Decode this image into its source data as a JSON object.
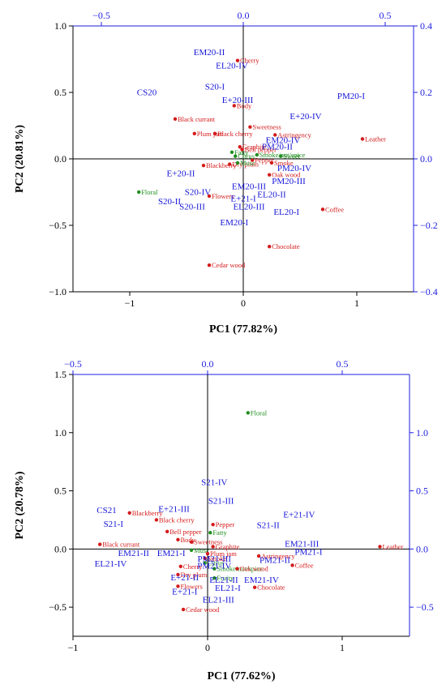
{
  "chart_data": [
    {
      "type": "scatter",
      "title": "",
      "xlabel": "PC1 (77.82%)",
      "ylabel": "PC2 (20.81%)",
      "xlim": [
        -1.5,
        1.5
      ],
      "ylim": [
        -1.0,
        1.0
      ],
      "xticks": [
        "−1",
        "0",
        "1"
      ],
      "yticks": [
        "1.0",
        "0.5",
        "0.0",
        "−0.5",
        "−1.0"
      ],
      "secondary_x_ticks": [
        "−0.5",
        "0.0",
        "0.5"
      ],
      "secondary_y_ticks": [
        "0.4",
        "0.2",
        "0.0",
        "−0.2",
        "−0.4"
      ],
      "samples": [
        {
          "label": "EM20-II",
          "x": -0.3,
          "y": 0.78
        },
        {
          "label": "EL20-IV",
          "x": -0.1,
          "y": 0.68
        },
        {
          "label": "CS20",
          "x": -0.85,
          "y": 0.48
        },
        {
          "label": "S20-I",
          "x": -0.25,
          "y": 0.52
        },
        {
          "label": "E+20-III",
          "x": -0.05,
          "y": 0.42
        },
        {
          "label": "PM20-I",
          "x": 0.95,
          "y": 0.45
        },
        {
          "label": "E+20-IV",
          "x": 0.55,
          "y": 0.3
        },
        {
          "label": "EM20-IV",
          "x": 0.35,
          "y": 0.12
        },
        {
          "label": "PM20-II",
          "x": 0.3,
          "y": 0.07
        },
        {
          "label": "PM20-IV",
          "x": 0.45,
          "y": -0.09
        },
        {
          "label": "PM20-III",
          "x": 0.4,
          "y": -0.19
        },
        {
          "label": "E+20-II",
          "x": -0.55,
          "y": -0.13
        },
        {
          "label": "S20-IV",
          "x": -0.4,
          "y": -0.27
        },
        {
          "label": "S20-II",
          "x": -0.65,
          "y": -0.34
        },
        {
          "label": "S20-III",
          "x": -0.45,
          "y": -0.38
        },
        {
          "label": "EM20-III",
          "x": 0.05,
          "y": -0.23
        },
        {
          "label": "E+21-I",
          "x": 0.0,
          "y": -0.32
        },
        {
          "label": "EL20-II",
          "x": 0.25,
          "y": -0.29
        },
        {
          "label": "EL20-III",
          "x": 0.05,
          "y": -0.38
        },
        {
          "label": "EL20-I",
          "x": 0.38,
          "y": -0.42
        },
        {
          "label": "EM20-I",
          "x": -0.08,
          "y": -0.5
        }
      ],
      "attributes": [
        {
          "label": "Cherry",
          "x": -0.05,
          "y": 0.74,
          "group": "red"
        },
        {
          "label": "Body",
          "x": -0.08,
          "y": 0.4,
          "group": "red"
        },
        {
          "label": "Black currant",
          "x": -0.6,
          "y": 0.3,
          "group": "red"
        },
        {
          "label": "Plum jam",
          "x": -0.43,
          "y": 0.19,
          "group": "red"
        },
        {
          "label": "Black cherry",
          "x": -0.25,
          "y": 0.19,
          "group": "red"
        },
        {
          "label": "Sweetness",
          "x": 0.06,
          "y": 0.24,
          "group": "red"
        },
        {
          "label": "Astringency",
          "x": 0.28,
          "y": 0.18,
          "group": "red"
        },
        {
          "label": "Leather",
          "x": 1.05,
          "y": 0.15,
          "group": "red"
        },
        {
          "label": "Graphite",
          "x": -0.03,
          "y": 0.09,
          "group": "red"
        },
        {
          "label": "Bell pepper",
          "x": -0.01,
          "y": 0.07,
          "group": "red"
        },
        {
          "label": "Smoke",
          "x": 0.25,
          "y": -0.03,
          "group": "red"
        },
        {
          "label": "Pepper",
          "x": 0.08,
          "y": -0.01,
          "group": "red"
        },
        {
          "label": "Blackberry",
          "x": -0.35,
          "y": -0.05,
          "group": "red"
        },
        {
          "label": "Dry plum",
          "x": -0.12,
          "y": -0.04,
          "group": "red"
        },
        {
          "label": "Oak wood",
          "x": 0.23,
          "y": -0.12,
          "group": "red"
        },
        {
          "label": "Flowers",
          "x": -0.3,
          "y": -0.28,
          "group": "red"
        },
        {
          "label": "Coffee",
          "x": 0.7,
          "y": -0.38,
          "group": "red"
        },
        {
          "label": "Chocolate",
          "x": 0.23,
          "y": -0.66,
          "group": "red"
        },
        {
          "label": "Cedar wood",
          "x": -0.3,
          "y": -0.8,
          "group": "red"
        },
        {
          "label": "Fatty",
          "x": -0.1,
          "y": 0.05,
          "group": "green"
        },
        {
          "label": "Citrus",
          "x": -0.07,
          "y": 0.02,
          "group": "green"
        },
        {
          "label": "Smoke/nut/spice",
          "x": 0.12,
          "y": 0.03,
          "group": "green"
        },
        {
          "label": "Sweet",
          "x": 0.33,
          "y": 0.02,
          "group": "green"
        },
        {
          "label": "Musc",
          "x": -0.05,
          "y": -0.03,
          "group": "green"
        },
        {
          "label": "Floral",
          "x": -0.92,
          "y": -0.25,
          "group": "green"
        }
      ]
    },
    {
      "type": "scatter",
      "title": "",
      "xlabel": "PC1 (77.62%)",
      "ylabel": "PC2 (20.78%)",
      "xlim": [
        -1.0,
        1.5
      ],
      "ylim": [
        -0.75,
        1.5
      ],
      "xticks": [
        "−1",
        "0",
        "1"
      ],
      "yticks": [
        "1.5",
        "1.0",
        "0.5",
        "0.0",
        "−0.5"
      ],
      "secondary_x_ticks": [
        "−0.5",
        "0.0",
        "0.5"
      ],
      "secondary_y_ticks": [
        "1.0",
        "0.5",
        "0.0",
        "−0.5"
      ],
      "samples": [
        {
          "label": "S21-IV",
          "x": 0.05,
          "y": 0.55
        },
        {
          "label": "S21-III",
          "x": 0.1,
          "y": 0.39
        },
        {
          "label": "E+21-IV",
          "x": 0.68,
          "y": 0.27
        },
        {
          "label": "CS21",
          "x": -0.75,
          "y": 0.31
        },
        {
          "label": "E+21-III",
          "x": -0.25,
          "y": 0.32
        },
        {
          "label": "S21-I",
          "x": -0.7,
          "y": 0.19
        },
        {
          "label": "S21-II",
          "x": 0.45,
          "y": 0.18
        },
        {
          "label": "EM21-III",
          "x": 0.7,
          "y": 0.02
        },
        {
          "label": "PM21-I",
          "x": 0.75,
          "y": -0.05
        },
        {
          "label": "EM21-II",
          "x": -0.55,
          "y": -0.06
        },
        {
          "label": "EM21-I",
          "x": -0.27,
          "y": -0.06
        },
        {
          "label": "EL21-IV",
          "x": -0.72,
          "y": -0.15
        },
        {
          "label": "PM21-III",
          "x": 0.05,
          "y": -0.11
        },
        {
          "label": "PM21-II",
          "x": 0.5,
          "y": -0.12
        },
        {
          "label": "PM21-IV",
          "x": 0.05,
          "y": -0.17
        },
        {
          "label": "E+21-II",
          "x": -0.17,
          "y": -0.27
        },
        {
          "label": "EL21-II",
          "x": 0.12,
          "y": -0.29
        },
        {
          "label": "EM21-IV",
          "x": 0.4,
          "y": -0.29
        },
        {
          "label": "EL21-I",
          "x": 0.15,
          "y": -0.36
        },
        {
          "label": "E+21-I",
          "x": -0.17,
          "y": -0.39
        },
        {
          "label": "EL21-III",
          "x": 0.08,
          "y": -0.46
        }
      ],
      "attributes": [
        {
          "label": "Floral",
          "x": 0.3,
          "y": 1.17,
          "group": "green"
        },
        {
          "label": "Blackberry",
          "x": -0.58,
          "y": 0.31,
          "group": "red"
        },
        {
          "label": "Black cherry",
          "x": -0.38,
          "y": 0.25,
          "group": "red"
        },
        {
          "label": "Pepper",
          "x": 0.04,
          "y": 0.21,
          "group": "red"
        },
        {
          "label": "Bell pepper",
          "x": -0.3,
          "y": 0.15,
          "group": "red"
        },
        {
          "label": "Fatty",
          "x": 0.02,
          "y": 0.14,
          "group": "green"
        },
        {
          "label": "Body",
          "x": -0.22,
          "y": 0.08,
          "group": "red"
        },
        {
          "label": "Sweetness",
          "x": -0.12,
          "y": 0.06,
          "group": "red"
        },
        {
          "label": "Black currant",
          "x": -0.8,
          "y": 0.04,
          "group": "red"
        },
        {
          "label": "Graphite",
          "x": 0.04,
          "y": 0.02,
          "group": "red"
        },
        {
          "label": "Leather",
          "x": 1.28,
          "y": 0.02,
          "group": "red"
        },
        {
          "label": "Musc",
          "x": -0.12,
          "y": -0.01,
          "group": "green"
        },
        {
          "label": "Plum jam",
          "x": 0.0,
          "y": -0.04,
          "group": "red"
        },
        {
          "label": "Smoke",
          "x": -0.02,
          "y": -0.08,
          "group": "red"
        },
        {
          "label": "Astringency",
          "x": 0.38,
          "y": -0.06,
          "group": "red"
        },
        {
          "label": "Citrus",
          "x": -0.02,
          "y": -0.12,
          "group": "green"
        },
        {
          "label": "Coffee",
          "x": 0.63,
          "y": -0.14,
          "group": "red"
        },
        {
          "label": "Cherry",
          "x": -0.2,
          "y": -0.15,
          "group": "red"
        },
        {
          "label": "Smoke/nut/spice",
          "x": 0.05,
          "y": -0.17,
          "group": "green"
        },
        {
          "label": "Oak wood",
          "x": 0.22,
          "y": -0.17,
          "group": "red"
        },
        {
          "label": "Dry plum",
          "x": -0.22,
          "y": -0.22,
          "group": "red"
        },
        {
          "label": "Fruity",
          "x": 0.05,
          "y": -0.25,
          "group": "green"
        },
        {
          "label": "Chocolate",
          "x": 0.35,
          "y": -0.33,
          "group": "red"
        },
        {
          "label": "Flowers",
          "x": -0.22,
          "y": -0.32,
          "group": "red"
        },
        {
          "label": "Cedar wood",
          "x": -0.18,
          "y": -0.52,
          "group": "red"
        }
      ]
    }
  ],
  "colors": {
    "sample": "#1515d8",
    "attribute_red": "#d41a1a",
    "attribute_green": "#1f8f1f",
    "secondary_axis": "#1f1fe0"
  }
}
